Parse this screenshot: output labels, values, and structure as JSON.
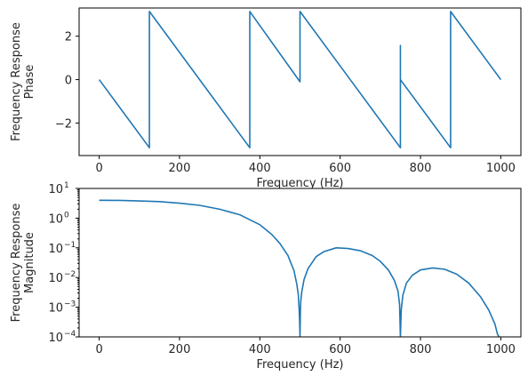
{
  "chart_data": [
    {
      "type": "line",
      "xlabel": "Frequency (Hz)",
      "ylabel": [
        "Frequency Response",
        "Phase"
      ],
      "xlim": [
        -50,
        1050
      ],
      "ylim": [
        -3.5,
        3.3
      ],
      "xticks": [
        0,
        200,
        400,
        600,
        800,
        1000
      ],
      "xtick_labels": [
        "0",
        "200",
        "400",
        "600",
        "800",
        "1000"
      ],
      "yticks": [
        -2,
        0,
        2
      ],
      "ytick_labels": [
        "−2",
        "0",
        "2"
      ],
      "grid": false,
      "color": "#1f77b4",
      "series": [
        {
          "x": [
            0,
            125,
            125,
            375,
            375,
            500,
            500,
            750,
            750,
            750,
            875,
            875,
            1000
          ],
          "y": [
            0,
            -3.14,
            3.14,
            -3.14,
            3.14,
            -0.1,
            3.14,
            -3.14,
            1.57,
            0,
            -3.14,
            3.14,
            0
          ]
        }
      ]
    },
    {
      "type": "line",
      "xlabel": "Frequency (Hz)",
      "ylabel": [
        "Frequency Response",
        "Magnitude"
      ],
      "yscale": "log",
      "xlim": [
        -50,
        1050
      ],
      "ylim": [
        0.0001,
        10
      ],
      "xticks": [
        0,
        200,
        400,
        600,
        800,
        1000
      ],
      "xtick_labels": [
        "0",
        "200",
        "400",
        "600",
        "800",
        "1000"
      ],
      "ytick_labels": [
        "10",
        "10",
        "10",
        "10",
        "10",
        "10"
      ],
      "ytick_exponents": [
        "−4",
        "−3",
        "−2",
        "−1",
        "0",
        "1"
      ],
      "grid": false,
      "color": "#1f77b4",
      "series": [
        {
          "x": [
            0,
            50,
            100,
            150,
            200,
            250,
            300,
            350,
            400,
            430,
            450,
            470,
            485,
            492,
            496,
            498,
            499,
            500,
            501,
            502,
            504,
            510,
            520,
            540,
            560,
            590,
            620,
            650,
            680,
            700,
            720,
            735,
            744,
            748,
            750,
            752,
            756,
            765,
            780,
            800,
            830,
            860,
            890,
            920,
            950,
            970,
            985,
            992,
            996
          ],
          "y": [
            4.0,
            3.95,
            3.8,
            3.6,
            3.2,
            2.7,
            2.0,
            1.3,
            0.6,
            0.28,
            0.14,
            0.055,
            0.017,
            0.006,
            0.0025,
            0.00075,
            0.00035,
            0.0001,
            0.0008,
            0.0016,
            0.003,
            0.0085,
            0.02,
            0.05,
            0.075,
            0.1,
            0.095,
            0.08,
            0.055,
            0.035,
            0.018,
            0.008,
            0.0035,
            0.0012,
            0.0001,
            0.0008,
            0.0025,
            0.0065,
            0.012,
            0.018,
            0.021,
            0.019,
            0.013,
            0.0065,
            0.0022,
            0.0008,
            0.00028,
            0.00012,
            0.0001
          ]
        }
      ]
    }
  ]
}
